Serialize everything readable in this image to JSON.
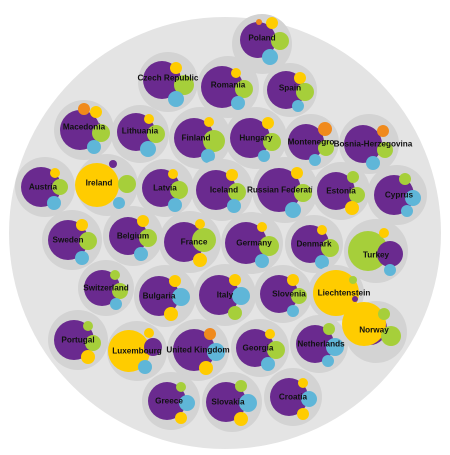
{
  "colors": {
    "purple": "#6a2a8f",
    "yellow": "#ffcc00",
    "green": "#a6cf3a",
    "blue": "#5fb6d8",
    "orange": "#f08a1c",
    "group_bg": "#d3d3d3",
    "outer_bg": "#e4e4e4"
  },
  "countries": [
    {
      "name": "Poland"
    },
    {
      "name": "Czech Republic"
    },
    {
      "name": "Romania"
    },
    {
      "name": "Spain"
    },
    {
      "name": "Macedonia"
    },
    {
      "name": "Lithuania"
    },
    {
      "name": "Finland"
    },
    {
      "name": "Hungary"
    },
    {
      "name": "Montenegro"
    },
    {
      "name": "Bosnia-Herzegovina"
    },
    {
      "name": "Austria"
    },
    {
      "name": "Ireland"
    },
    {
      "name": "Latvia"
    },
    {
      "name": "Iceland"
    },
    {
      "name": "Russian Federation"
    },
    {
      "name": "Estonia"
    },
    {
      "name": "Cyprus"
    },
    {
      "name": "Sweden"
    },
    {
      "name": "Belgium"
    },
    {
      "name": "France"
    },
    {
      "name": "Germany"
    },
    {
      "name": "Denmark"
    },
    {
      "name": "Turkey"
    },
    {
      "name": "Switzerland"
    },
    {
      "name": "Bulgaria"
    },
    {
      "name": "Italy"
    },
    {
      "name": "Slovenia"
    },
    {
      "name": "Liechtenstein"
    },
    {
      "name": "Portugal"
    },
    {
      "name": "Luxembourg"
    },
    {
      "name": "United Kingdom"
    },
    {
      "name": "Georgia"
    },
    {
      "name": "Netherlands"
    },
    {
      "name": "Norway"
    },
    {
      "name": "Greece"
    },
    {
      "name": "Slovakia"
    },
    {
      "name": "Croatia"
    }
  ]
}
